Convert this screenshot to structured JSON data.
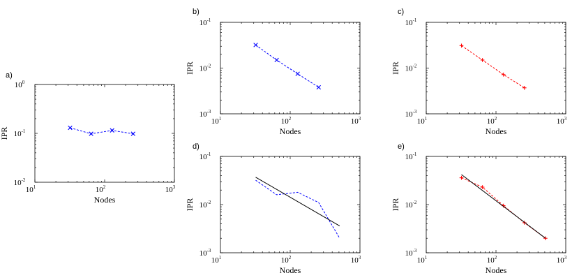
{
  "chart_data": [
    {
      "panel": "a)",
      "type": "line",
      "scale": "log-log",
      "xlabel": "Nodes",
      "ylabel": "IPR",
      "xlim": [
        10,
        1000
      ],
      "ylim": [
        0.01,
        1
      ],
      "x_ticks": [
        {
          "base": "10",
          "exp": "1"
        },
        {
          "base": "10",
          "exp": "2"
        },
        {
          "base": "10",
          "exp": "3"
        }
      ],
      "y_ticks": [
        {
          "base": "10",
          "exp": "-2"
        },
        {
          "base": "10",
          "exp": "-1"
        },
        {
          "base": "10",
          "exp": "0"
        }
      ],
      "grid": false,
      "series": [
        {
          "color": "#0000ff",
          "style": "dashed",
          "marker": "x",
          "x": [
            32,
            64,
            128,
            256
          ],
          "y": [
            0.13,
            0.098,
            0.115,
            0.098
          ]
        }
      ]
    },
    {
      "panel": "b)",
      "type": "line",
      "scale": "log-log",
      "xlabel": "Nodes",
      "ylabel": "IPR",
      "xlim": [
        10,
        1000
      ],
      "ylim": [
        0.001,
        0.1
      ],
      "x_ticks": [
        {
          "base": "10",
          "exp": "1"
        },
        {
          "base": "10",
          "exp": "2"
        },
        {
          "base": "10",
          "exp": "3"
        }
      ],
      "y_ticks": [
        {
          "base": "10",
          "exp": "-3"
        },
        {
          "base": "10",
          "exp": "-2"
        },
        {
          "base": "10",
          "exp": "-1"
        }
      ],
      "grid": false,
      "series": [
        {
          "color": "#0000ff",
          "style": "dashed",
          "marker": "x",
          "x": [
            32,
            64,
            128,
            256
          ],
          "y": [
            0.032,
            0.015,
            0.0075,
            0.0038
          ]
        }
      ]
    },
    {
      "panel": "c)",
      "type": "line",
      "scale": "log-log",
      "xlabel": "Nodes",
      "ylabel": "IPR",
      "xlim": [
        10,
        1000
      ],
      "ylim": [
        0.001,
        0.1
      ],
      "x_ticks": [
        {
          "base": "10",
          "exp": "1"
        },
        {
          "base": "10",
          "exp": "2"
        },
        {
          "base": "10",
          "exp": "3"
        }
      ],
      "y_ticks": [
        {
          "base": "10",
          "exp": "-3"
        },
        {
          "base": "10",
          "exp": "-2"
        },
        {
          "base": "10",
          "exp": "-1"
        }
      ],
      "grid": false,
      "series": [
        {
          "color": "#ff0000",
          "style": "dashed",
          "marker": "+",
          "x": [
            32,
            64,
            128,
            256
          ],
          "y": [
            0.031,
            0.015,
            0.0072,
            0.0037
          ]
        }
      ]
    },
    {
      "panel": "d)",
      "type": "line",
      "scale": "log-log",
      "xlabel": "Nodes",
      "ylabel": "IPR",
      "xlim": [
        10,
        1000
      ],
      "ylim": [
        0.001,
        0.1
      ],
      "x_ticks": [
        {
          "base": "10",
          "exp": "1"
        },
        {
          "base": "10",
          "exp": "2"
        },
        {
          "base": "10",
          "exp": "3"
        }
      ],
      "y_ticks": [
        {
          "base": "10",
          "exp": "-3"
        },
        {
          "base": "10",
          "exp": "-2"
        },
        {
          "base": "10",
          "exp": "-1"
        }
      ],
      "grid": false,
      "series": [
        {
          "color": "#0000ff",
          "style": "dashed",
          "marker": "none",
          "x": [
            32,
            64,
            128,
            256,
            512
          ],
          "y": [
            0.032,
            0.016,
            0.018,
            0.011,
            0.002
          ]
        },
        {
          "color": "#000000",
          "style": "solid",
          "marker": "none",
          "x": [
            32,
            512
          ],
          "y": [
            0.037,
            0.0036
          ]
        }
      ]
    },
    {
      "panel": "e)",
      "type": "line",
      "scale": "log-log",
      "xlabel": "Nodes",
      "ylabel": "IPR",
      "xlim": [
        10,
        1000
      ],
      "ylim": [
        0.001,
        0.1
      ],
      "x_ticks": [
        {
          "base": "10",
          "exp": "1"
        },
        {
          "base": "10",
          "exp": "2"
        },
        {
          "base": "10",
          "exp": "3"
        }
      ],
      "y_ticks": [
        {
          "base": "10",
          "exp": "-3"
        },
        {
          "base": "10",
          "exp": "-2"
        },
        {
          "base": "10",
          "exp": "-1"
        }
      ],
      "grid": false,
      "series": [
        {
          "color": "#ff0000",
          "style": "dashed",
          "marker": "+",
          "x": [
            32,
            64,
            128,
            256,
            512
          ],
          "y": [
            0.036,
            0.023,
            0.0095,
            0.0042,
            0.002
          ]
        },
        {
          "color": "#000000",
          "style": "solid",
          "marker": "none",
          "x": [
            32,
            512
          ],
          "y": [
            0.042,
            0.002
          ]
        }
      ]
    }
  ]
}
